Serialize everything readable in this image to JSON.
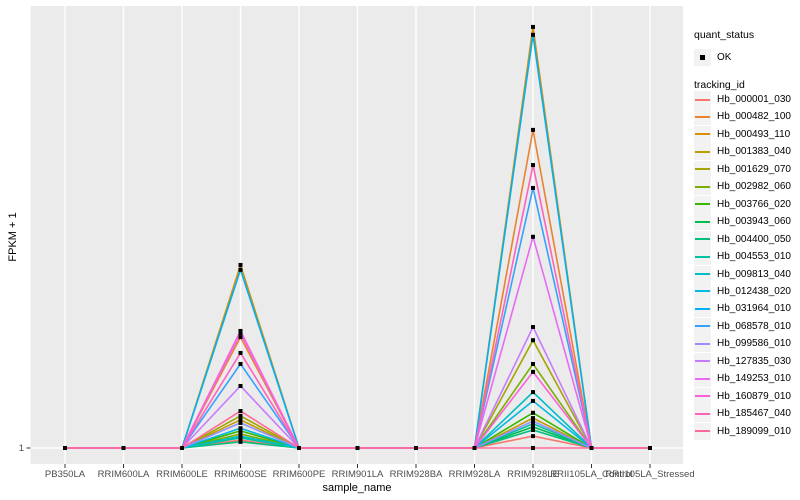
{
  "legend": {
    "quant_status_title": "quant_status",
    "quant_status_items": [
      {
        "label": "OK",
        "marker": "black-square-point"
      }
    ],
    "tracking_id_title": "tracking_id"
  },
  "colors": {
    "panel_bg": "#EBEBEB",
    "gridline": "#FFFFFF",
    "point": "#000000",
    "legend_key_bg": "#F2F2F2",
    "tick_label": "#4D4D4D",
    "axis_title": "#000000"
  },
  "chart_data": {
    "type": "line",
    "title": "",
    "xlabel": "sample_name",
    "ylabel": "FPKM + 1",
    "x_categories": [
      "PB350LA",
      "RRIM600LA",
      "RRIM600LE",
      "RRIM600SE",
      "RRIM600PE",
      "RRIM901LA",
      "RRIM928BA",
      "RRIM928LA",
      "RRIM928LE",
      "RRII105LA_Control",
      "RRII105LA_Stressed"
    ],
    "y_axis": {
      "visible_tick_labels": [
        "1"
      ],
      "baseline_value": 1,
      "units": "series values recorded as fraction of panel height above the y=1 baseline (only the '1' tick is labeled)"
    },
    "grid": "white vertical gridline per category and one horizontal gridline at y=1 on gray panel",
    "legend_position": "right",
    "quant_status": "OK",
    "series": [
      {
        "tracking_id": "Hb_000001_030",
        "color": "#F8766D",
        "values_fraction": [
          0,
          0,
          0,
          0.018,
          0,
          0,
          0,
          0,
          0.027,
          0,
          0
        ]
      },
      {
        "tracking_id": "Hb_000482_100",
        "color": "#EA8331",
        "values_fraction": [
          0,
          0,
          0,
          0.252,
          0,
          0,
          0,
          0,
          0.723,
          0,
          0
        ]
      },
      {
        "tracking_id": "Hb_000493_110",
        "color": "#D89000",
        "values_fraction": [
          0,
          0,
          0,
          0.416,
          0,
          0,
          0,
          0,
          0.957,
          0,
          0
        ]
      },
      {
        "tracking_id": "Hb_001383_040",
        "color": "#C09B00",
        "values_fraction": [
          0,
          0,
          0,
          0.064,
          0,
          0,
          0,
          0,
          0.068,
          0,
          0
        ]
      },
      {
        "tracking_id": "Hb_001629_070",
        "color": "#A3A500",
        "values_fraction": [
          0,
          0,
          0,
          0.073,
          0,
          0,
          0,
          0,
          0.245,
          0,
          0
        ]
      },
      {
        "tracking_id": "Hb_002982_060",
        "color": "#7CAE00",
        "values_fraction": [
          0,
          0,
          0,
          0.032,
          0,
          0,
          0,
          0,
          0.191,
          0,
          0
        ]
      },
      {
        "tracking_id": "Hb_003766_020",
        "color": "#39B600",
        "values_fraction": [
          0,
          0,
          0,
          0.039,
          0,
          0,
          0,
          0,
          0.08,
          0,
          0
        ]
      },
      {
        "tracking_id": "Hb_003943_060",
        "color": "#00BB4E",
        "values_fraction": [
          0,
          0,
          0,
          0.025,
          0,
          0,
          0,
          0,
          0.048,
          0,
          0
        ]
      },
      {
        "tracking_id": "Hb_004400_050",
        "color": "#00BF7D",
        "values_fraction": [
          0,
          0,
          0,
          0.014,
          0,
          0,
          0,
          0,
          0.041,
          0,
          0
        ]
      },
      {
        "tracking_id": "Hb_004553_010",
        "color": "#00C1A3",
        "values_fraction": [
          0,
          0,
          0,
          0.023,
          0,
          0,
          0,
          0,
          0.055,
          0,
          0
        ]
      },
      {
        "tracking_id": "Hb_009813_040",
        "color": "#00BFC4",
        "values_fraction": [
          0,
          0,
          0,
          0.027,
          0,
          0,
          0,
          0,
          0.127,
          0,
          0
        ]
      },
      {
        "tracking_id": "Hb_012438_020",
        "color": "#00BAE0",
        "values_fraction": [
          0,
          0,
          0,
          0.045,
          0,
          0,
          0,
          0,
          0.107,
          0,
          0
        ]
      },
      {
        "tracking_id": "Hb_031964_010",
        "color": "#00B0F6",
        "values_fraction": [
          0,
          0,
          0,
          0.405,
          0,
          0,
          0,
          0,
          0.939,
          0,
          0
        ]
      },
      {
        "tracking_id": "Hb_068578_010",
        "color": "#35A2FF",
        "values_fraction": [
          0,
          0,
          0,
          0.191,
          0,
          0,
          0,
          0,
          0.591,
          0,
          0
        ]
      },
      {
        "tracking_id": "Hb_099586_010",
        "color": "#9590FF",
        "values_fraction": [
          0,
          0,
          0,
          0.057,
          0,
          0,
          0,
          0,
          0.061,
          0,
          0
        ]
      },
      {
        "tracking_id": "Hb_127835_030",
        "color": "#C77CFF",
        "values_fraction": [
          0,
          0,
          0,
          0.141,
          0,
          0,
          0,
          0,
          0.275,
          0,
          0
        ]
      },
      {
        "tracking_id": "Hb_149253_010",
        "color": "#E76BF3",
        "values_fraction": [
          0,
          0,
          0,
          0.261,
          0,
          0,
          0,
          0,
          0.48,
          0,
          0
        ]
      },
      {
        "tracking_id": "Hb_160879_010",
        "color": "#FA62DB",
        "values_fraction": [
          0,
          0,
          0,
          0.266,
          0,
          0,
          0,
          0,
          0.173,
          0,
          0
        ]
      },
      {
        "tracking_id": "Hb_185467_040",
        "color": "#FF62BC",
        "values_fraction": [
          0,
          0,
          0,
          0.216,
          0,
          0,
          0,
          0,
          0.643,
          0,
          0
        ]
      },
      {
        "tracking_id": "Hb_189099_010",
        "color": "#FF6A98",
        "values_fraction": [
          0,
          0,
          0,
          0.084,
          0,
          0,
          0,
          0,
          0,
          0,
          0
        ]
      }
    ]
  }
}
